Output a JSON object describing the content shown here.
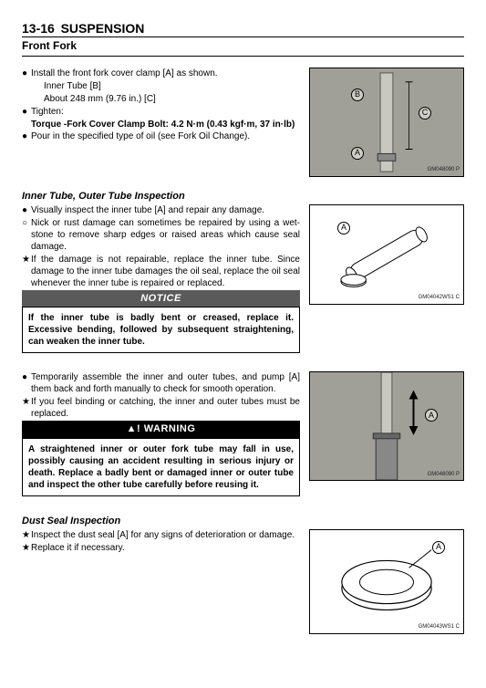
{
  "header": {
    "page_number": "13-16",
    "chapter": "SUSPENSION",
    "section": "Front Fork"
  },
  "block1": {
    "items": [
      {
        "mark": "●",
        "text": "Install the front fork cover clamp [A] as shown."
      },
      {
        "mark": "",
        "text": "Inner Tube [B]",
        "indent": true
      },
      {
        "mark": "",
        "text": "About 248 mm (9.76 in.)  [C]",
        "indent": true
      },
      {
        "mark": "●",
        "text": "Tighten:"
      }
    ],
    "torque_label": "Torque - ",
    "torque_value": "Fork Cover Clamp Bolt:  4.2 N·m (0.43 kgf·m, 37 in·lb)",
    "after": [
      {
        "mark": "●",
        "text": "Pour in the specified type of oil (see Fork Oil Change)."
      }
    ],
    "figure": {
      "labels": [
        "B",
        "C",
        "A"
      ],
      "code": "GM048090 P",
      "bg": "#a8a8a0"
    }
  },
  "block2": {
    "heading": "Inner Tube, Outer Tube Inspection",
    "items": [
      {
        "mark": "●",
        "text": "Visually inspect the inner tube [A] and repair any damage."
      },
      {
        "mark": "○",
        "text": "Nick or rust damage can sometimes be repaired by using a wet-stone to remove sharp edges or raised areas which cause seal damage."
      },
      {
        "mark": "★",
        "text": "If the damage is not repairable, replace the inner tube. Since damage to the inner tube damages the oil seal, replace the oil seal whenever the inner tube is repaired or replaced."
      }
    ],
    "notice_title": "NOTICE",
    "notice_text": "If the inner tube is badly bent or creased, replace it.  Excessive bending, followed by subsequent straightening, can weaken the inner tube.",
    "figure": {
      "labels": [
        "A"
      ],
      "code": "GM04042WS1 C",
      "bg": "#ffffff"
    }
  },
  "block3": {
    "items": [
      {
        "mark": "●",
        "text": "Temporarily assemble the inner and outer tubes, and pump [A] them back and forth manually to check for smooth operation."
      },
      {
        "mark": "★",
        "text": "If you feel binding or catching, the inner and outer tubes must be replaced."
      }
    ],
    "warning_title": "WARNING",
    "warning_text": "A straightened inner or outer fork tube may fall in use, possibly causing an accident resulting in serious injury or death.  Replace a badly bent or damaged inner or outer tube and inspect the other tube carefully before reusing it.",
    "figure": {
      "labels": [
        "A"
      ],
      "code": "GM048090 P",
      "bg": "#a8a8a0"
    }
  },
  "block4": {
    "heading": "Dust Seal Inspection",
    "items": [
      {
        "mark": "★",
        "text": "Inspect the dust seal [A] for any signs of deterioration or damage."
      },
      {
        "mark": "★",
        "text": "Replace it if necessary."
      }
    ],
    "figure": {
      "labels": [
        "A"
      ],
      "code": "GM04043WS1 C",
      "bg": "#ffffff"
    }
  }
}
